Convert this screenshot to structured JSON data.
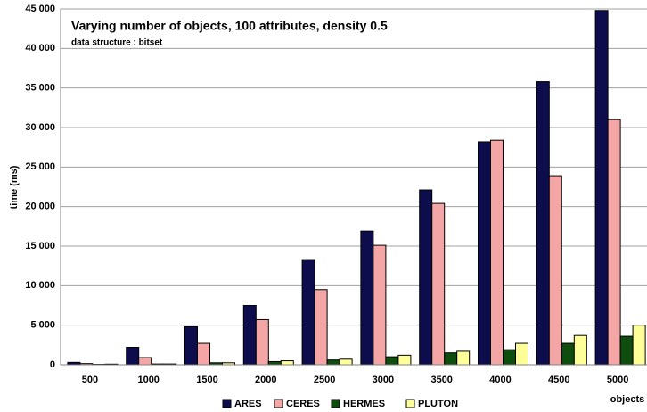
{
  "chart_data": {
    "type": "bar",
    "title": "Varying number of objects, 100 attributes, density 0.5",
    "subtitle": "data structure : bitset",
    "y_label": "time (ms)",
    "x_label": "objects",
    "categories": [
      "500",
      "1000",
      "1500",
      "2000",
      "2500",
      "3000",
      "3500",
      "4000",
      "4500",
      "5000"
    ],
    "series": [
      {
        "name": "ARES",
        "color": "#0d0d4d",
        "values": [
          300,
          2200,
          4800,
          7500,
          13300,
          16900,
          22100,
          28200,
          35800,
          44800
        ]
      },
      {
        "name": "CERES",
        "color": "#f4a6a6",
        "values": [
          150,
          900,
          2700,
          5700,
          9500,
          15100,
          20400,
          28400,
          23900,
          31000
        ]
      },
      {
        "name": "HERMES",
        "color": "#0f4d0f",
        "values": [
          50,
          100,
          250,
          400,
          600,
          1000,
          1500,
          1900,
          2700,
          3600
        ]
      },
      {
        "name": "PLUTON",
        "color": "#ffff99",
        "values": [
          80,
          100,
          250,
          500,
          700,
          1200,
          1700,
          2700,
          3700,
          5000
        ]
      }
    ],
    "ylim": [
      0,
      45000
    ],
    "yticks": [
      0,
      {
        "value": 5000,
        "label": "5 000"
      },
      {
        "value": 10000,
        "label": "10 000"
      },
      {
        "value": 15000,
        "label": "15 000"
      },
      {
        "value": 20000,
        "label": "20 000"
      },
      {
        "value": 25000,
        "label": "25 000"
      },
      {
        "value": 30000,
        "label": "30 000"
      },
      {
        "value": 35000,
        "label": "35 000"
      },
      {
        "value": 40000,
        "label": "40 000"
      },
      {
        "value": 45000,
        "label": "45 000"
      }
    ],
    "grid": true,
    "legend": "bottom"
  }
}
